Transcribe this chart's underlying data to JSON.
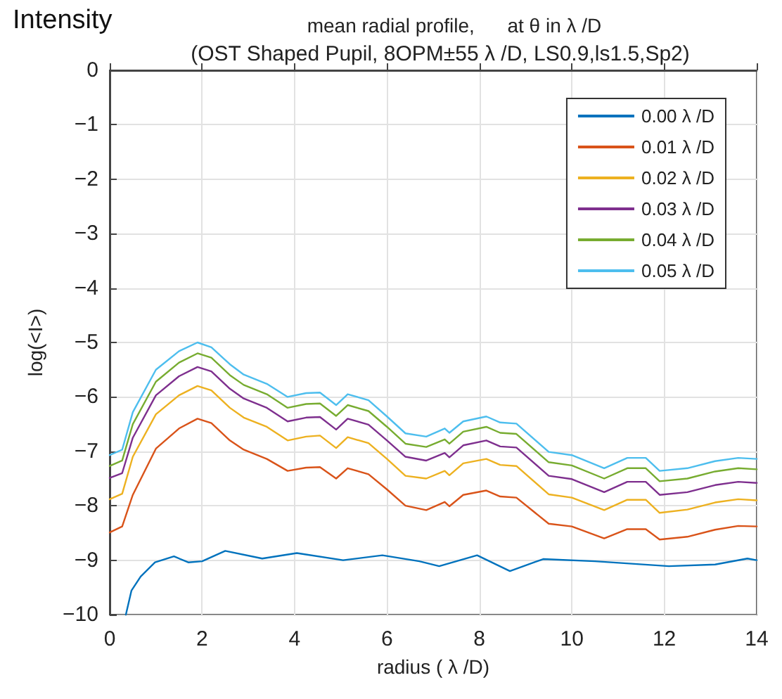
{
  "chart_data": {
    "type": "line",
    "title": "mean radial profile,      at θ in λ /D",
    "subtitle": "(OST Shaped Pupil, 8OPM±55 λ /D, LS0.9,ls1.5,Sp2)",
    "annotations": [
      "Intensity"
    ],
    "xlabel": "radius ( λ /D)",
    "ylabel": "log(<I>)",
    "x": [
      0,
      0.27,
      0.5,
      1,
      1.5,
      1.9,
      2.2,
      2.6,
      2.9,
      3.4,
      3.85,
      4.25,
      4.55,
      4.9,
      5.15,
      5.6,
      6,
      6.4,
      6.85,
      7.25,
      7.35,
      7.65,
      8.15,
      8.45,
      8.8,
      9.5,
      10,
      10.7,
      11.2,
      11.6,
      11.9,
      12.5,
      13.1,
      13.6,
      14
    ],
    "series": [
      {
        "name": "0.00 λ /D",
        "color": "#0072bd",
        "x": [
          0.35,
          0.47,
          0.67,
          0.98,
          1.39,
          1.7,
          2,
          2.5,
          3.3,
          4.05,
          5.05,
          5.9,
          6.7,
          7.13,
          7.95,
          8.66,
          9.38,
          10.5,
          12.1,
          13.1,
          13.8,
          14
        ],
        "values": [
          -10,
          -9.56,
          -9.3,
          -9.04,
          -8.93,
          -9.04,
          -9.02,
          -8.83,
          -8.97,
          -8.87,
          -9.0,
          -8.91,
          -9.02,
          -9.11,
          -8.91,
          -9.2,
          -8.98,
          -9.02,
          -9.11,
          -9.08,
          -8.97,
          -9.0
        ]
      },
      {
        "name": "0.01 λ /D",
        "color": "#d95319",
        "values": [
          -8.49,
          -8.38,
          -7.8,
          -6.95,
          -6.58,
          -6.4,
          -6.48,
          -6.8,
          -6.97,
          -7.14,
          -7.36,
          -7.3,
          -7.29,
          -7.5,
          -7.31,
          -7.42,
          -7.7,
          -8.0,
          -8.08,
          -7.93,
          -8.01,
          -7.8,
          -7.72,
          -7.83,
          -7.85,
          -8.33,
          -8.38,
          -8.6,
          -8.43,
          -8.43,
          -8.62,
          -8.57,
          -8.44,
          -8.37,
          -8.38
        ]
      },
      {
        "name": "0.02 λ /D",
        "color": "#edb120",
        "values": [
          -7.88,
          -7.78,
          -7.1,
          -6.32,
          -5.97,
          -5.8,
          -5.88,
          -6.2,
          -6.38,
          -6.55,
          -6.8,
          -6.73,
          -6.71,
          -6.94,
          -6.74,
          -6.85,
          -7.14,
          -7.45,
          -7.5,
          -7.36,
          -7.44,
          -7.22,
          -7.14,
          -7.25,
          -7.27,
          -7.79,
          -7.85,
          -8.08,
          -7.89,
          -7.89,
          -8.13,
          -8.07,
          -7.94,
          -7.88,
          -7.9
        ]
      },
      {
        "name": "0.03 λ /D",
        "color": "#7e2f8e",
        "values": [
          -7.49,
          -7.4,
          -6.75,
          -5.97,
          -5.62,
          -5.45,
          -5.53,
          -5.85,
          -6.03,
          -6.2,
          -6.45,
          -6.38,
          -6.37,
          -6.6,
          -6.4,
          -6.51,
          -6.8,
          -7.1,
          -7.17,
          -7.03,
          -7.11,
          -6.89,
          -6.8,
          -6.91,
          -6.93,
          -7.45,
          -7.51,
          -7.75,
          -7.56,
          -7.56,
          -7.8,
          -7.75,
          -7.62,
          -7.56,
          -7.58
        ]
      },
      {
        "name": "0.04 λ /D",
        "color": "#77ac30",
        "values": [
          -7.27,
          -7.17,
          -6.5,
          -5.72,
          -5.37,
          -5.2,
          -5.28,
          -5.6,
          -5.78,
          -5.95,
          -6.2,
          -6.13,
          -6.12,
          -6.35,
          -6.15,
          -6.26,
          -6.55,
          -6.86,
          -6.92,
          -6.78,
          -6.86,
          -6.64,
          -6.55,
          -6.66,
          -6.68,
          -7.2,
          -7.26,
          -7.5,
          -7.31,
          -7.31,
          -7.55,
          -7.5,
          -7.37,
          -7.31,
          -7.33
        ]
      },
      {
        "name": "0.05 λ /D",
        "color": "#4dbeee",
        "values": [
          -7.07,
          -6.97,
          -6.28,
          -5.5,
          -5.16,
          -5.0,
          -5.09,
          -5.4,
          -5.59,
          -5.76,
          -6.0,
          -5.93,
          -5.92,
          -6.15,
          -5.95,
          -6.06,
          -6.36,
          -6.67,
          -6.73,
          -6.58,
          -6.66,
          -6.45,
          -6.36,
          -6.47,
          -6.49,
          -7.01,
          -7.07,
          -7.31,
          -7.12,
          -7.12,
          -7.36,
          -7.31,
          -7.18,
          -7.12,
          -7.14
        ]
      }
    ],
    "xlim": [
      0,
      14
    ],
    "xticks": [
      0,
      2,
      4,
      6,
      8,
      10,
      12,
      14
    ],
    "ylim": [
      -10,
      0
    ],
    "yticks": [
      0,
      -1,
      -2,
      -3,
      -4,
      -5,
      -6,
      -7,
      -8,
      -9,
      -10
    ],
    "grid": true,
    "legend": "top right"
  }
}
